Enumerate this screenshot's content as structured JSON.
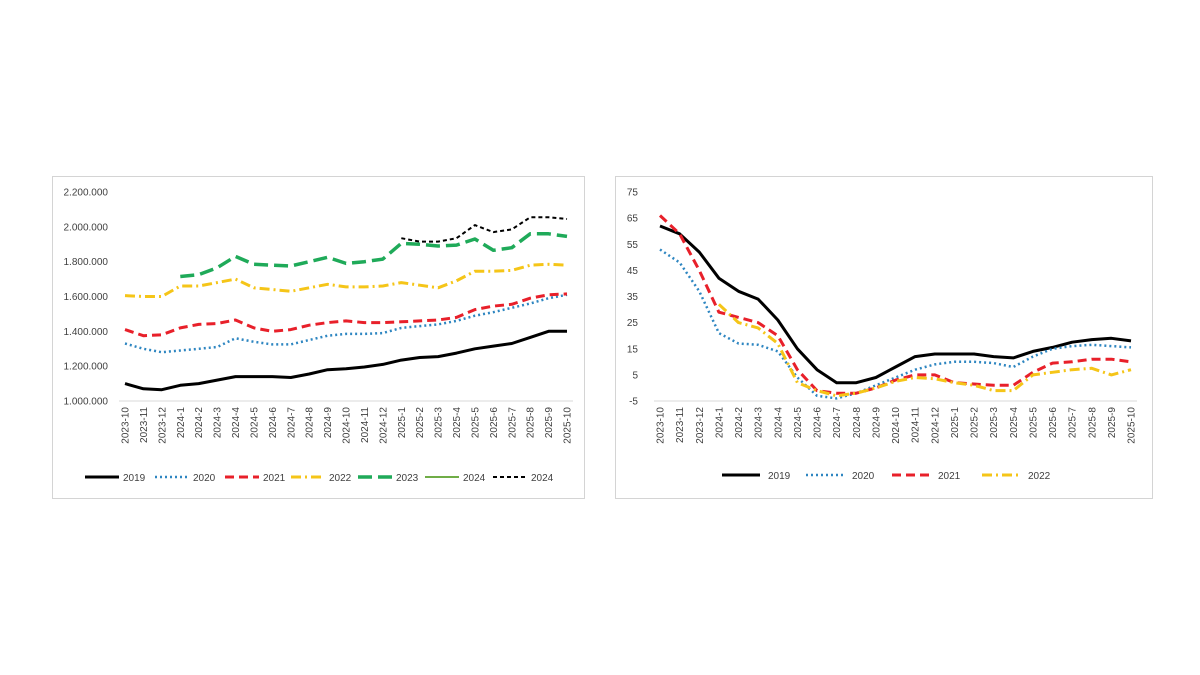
{
  "chart_data": [
    {
      "type": "line",
      "title": "",
      "xlabel": "",
      "ylabel": "",
      "ylim": [
        1000000,
        2200000
      ],
      "yticks": [
        1000000,
        1200000,
        1400000,
        1600000,
        1800000,
        2000000,
        2200000
      ],
      "ytick_labels": [
        "1.000.000",
        "1.200.000",
        "1.400.000",
        "1.600.000",
        "1.800.000",
        "2.000.000",
        "2.200.000"
      ],
      "grid": false,
      "legend_position": "bottom",
      "categories": [
        "2023-10",
        "2023-11",
        "2023-12",
        "2024-1",
        "2024-2",
        "2024-3",
        "2024-4",
        "2024-5",
        "2024-6",
        "2024-7",
        "2024-8",
        "2024-9",
        "2024-10",
        "2024-11",
        "2024-12",
        "2025-1",
        "2025-2",
        "2025-3",
        "2025-4",
        "2025-5",
        "2025-6",
        "2025-7",
        "2025-8",
        "2025-9",
        "2025-10"
      ],
      "series": [
        {
          "name": "2019",
          "color": "#000000",
          "style": "solid",
          "width": 3,
          "values": [
            1100000,
            1070000,
            1065000,
            1090000,
            1100000,
            1120000,
            1140000,
            1140000,
            1140000,
            1135000,
            1155000,
            1180000,
            1185000,
            1195000,
            1210000,
            1235000,
            1250000,
            1255000,
            1275000,
            1300000,
            1315000,
            1330000,
            1365000,
            1400000,
            1400000
          ]
        },
        {
          "name": "2020",
          "color": "#2E86C1",
          "style": "dotted",
          "width": 2.5,
          "values": [
            1330000,
            1300000,
            1280000,
            1290000,
            1300000,
            1310000,
            1360000,
            1340000,
            1325000,
            1325000,
            1350000,
            1375000,
            1385000,
            1385000,
            1390000,
            1420000,
            1430000,
            1440000,
            1460000,
            1490000,
            1510000,
            1535000,
            1560000,
            1590000,
            1610000
          ]
        },
        {
          "name": "2021",
          "color": "#E8202A",
          "style": "dashed",
          "width": 3,
          "values": [
            1410000,
            1375000,
            1380000,
            1420000,
            1440000,
            1445000,
            1465000,
            1420000,
            1400000,
            1410000,
            1435000,
            1450000,
            1460000,
            1450000,
            1450000,
            1455000,
            1460000,
            1465000,
            1480000,
            1525000,
            1545000,
            1555000,
            1590000,
            1610000,
            1615000
          ]
        },
        {
          "name": "2022",
          "color": "#F5C518",
          "style": "dashdot",
          "width": 3,
          "values": [
            1605000,
            1600000,
            1600000,
            1660000,
            1660000,
            1680000,
            1700000,
            1650000,
            1640000,
            1630000,
            1650000,
            1670000,
            1655000,
            1655000,
            1660000,
            1680000,
            1665000,
            1650000,
            1690000,
            1745000,
            1745000,
            1750000,
            1780000,
            1785000,
            1780000
          ]
        },
        {
          "name": "2023",
          "color": "#1FAA59",
          "style": "longdash",
          "width": 3.5,
          "values": [
            null,
            null,
            null,
            1715000,
            1725000,
            1765000,
            1830000,
            1785000,
            1780000,
            1775000,
            1800000,
            1825000,
            1790000,
            1800000,
            1815000,
            1905000,
            1900000,
            1890000,
            1895000,
            1930000,
            1865000,
            1880000,
            1960000,
            1960000,
            1945000
          ]
        },
        {
          "name": "2024",
          "color": "#70AD47",
          "style": "solid",
          "width": 2,
          "values": [
            null,
            null,
            null,
            null,
            null,
            null,
            null,
            null,
            null,
            null,
            null,
            null,
            null,
            null,
            null,
            null,
            null,
            null,
            null,
            null,
            null,
            null,
            null,
            null,
            null
          ]
        },
        {
          "name": "2024",
          "color": "#000000",
          "style": "shortdash",
          "width": 2,
          "values": [
            null,
            null,
            null,
            null,
            null,
            null,
            null,
            null,
            null,
            null,
            null,
            null,
            null,
            null,
            null,
            1935000,
            1915000,
            1915000,
            1935000,
            2010000,
            1970000,
            1985000,
            2055000,
            2055000,
            2045000
          ]
        }
      ]
    },
    {
      "type": "line",
      "title": "",
      "xlabel": "",
      "ylabel": "",
      "ylim": [
        -5,
        75
      ],
      "yticks": [
        -5,
        5,
        15,
        25,
        35,
        45,
        55,
        65,
        75
      ],
      "ytick_labels": [
        "-5",
        "5",
        "15",
        "25",
        "35",
        "45",
        "55",
        "65",
        "75"
      ],
      "grid": false,
      "legend_position": "bottom",
      "categories": [
        "2023-10",
        "2023-11",
        "2023-12",
        "2024-1",
        "2024-2",
        "2024-3",
        "2024-4",
        "2024-5",
        "2024-6",
        "2024-7",
        "2024-8",
        "2024-9",
        "2024-10",
        "2024-11",
        "2024-12",
        "2025-1",
        "2025-2",
        "2025-3",
        "2025-4",
        "2025-5",
        "2025-6",
        "2025-7",
        "2025-8",
        "2025-9",
        "2025-10"
      ],
      "series": [
        {
          "name": "2019",
          "color": "#000000",
          "style": "solid",
          "width": 3,
          "values": [
            62,
            59,
            52,
            42,
            37,
            34,
            26,
            15,
            7,
            2,
            2,
            4,
            8,
            12,
            13,
            13,
            13,
            12,
            11.5,
            14,
            15.5,
            17.5,
            18.5,
            19,
            18
          ]
        },
        {
          "name": "2020",
          "color": "#2E86C1",
          "style": "dotted",
          "width": 2.5,
          "values": [
            53,
            48,
            37,
            21,
            17,
            16.5,
            14,
            4,
            -3,
            -4,
            -2,
            1,
            4,
            7,
            9,
            10,
            10,
            9.5,
            8,
            12,
            15,
            16,
            16.5,
            16,
            15.5
          ]
        },
        {
          "name": "2021",
          "color": "#E8202A",
          "style": "dashed",
          "width": 3,
          "values": [
            66,
            59,
            45,
            29,
            27,
            25,
            20,
            7,
            -1,
            -2,
            -2,
            0,
            3,
            5,
            5,
            2,
            1.5,
            1,
            1,
            6,
            9.5,
            10,
            11,
            11,
            10
          ]
        },
        {
          "name": "2022",
          "color": "#F5C518",
          "style": "dashdot",
          "width": 3,
          "values": [
            null,
            null,
            null,
            32,
            25,
            23,
            17,
            2,
            -1,
            -3,
            -2,
            0,
            2.5,
            4,
            3.5,
            2,
            1,
            -1,
            -1,
            5,
            6,
            7,
            7.5,
            5,
            7
          ]
        }
      ]
    }
  ]
}
